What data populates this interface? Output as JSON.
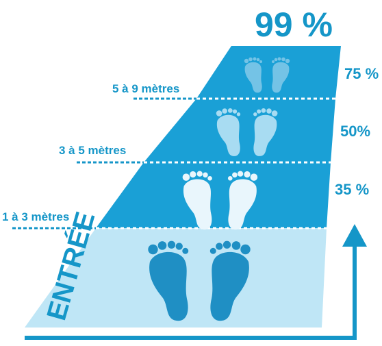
{
  "headline": "99 %",
  "entrance_label": "ENTRÉE",
  "zones": [
    {
      "id": "entree",
      "percent": "",
      "distance": "",
      "fill": "#bfe6f6",
      "foot_color": "#1f8fc4"
    },
    {
      "id": "zone-1-3",
      "percent": "35 %",
      "distance": "1 à 3 mètres",
      "fill": "#1aa0d6",
      "foot_color": "#e9f6fc"
    },
    {
      "id": "zone-3-5",
      "percent": "50%",
      "distance": "3 à 5 mètres",
      "fill": "#1aa0d6",
      "foot_color": "#a8dcf2"
    },
    {
      "id": "zone-5-9",
      "percent": "75 %",
      "distance": "5 à 9 mètres",
      "fill": "#1aa0d6",
      "foot_color": "#74c3e6"
    }
  ],
  "colors": {
    "accent": "#1596c8",
    "arrow": "#1596c8",
    "divider": "#ffffff"
  },
  "icons": {
    "footprint": "footprints-icon",
    "arrow": "up-arrow-icon"
  }
}
